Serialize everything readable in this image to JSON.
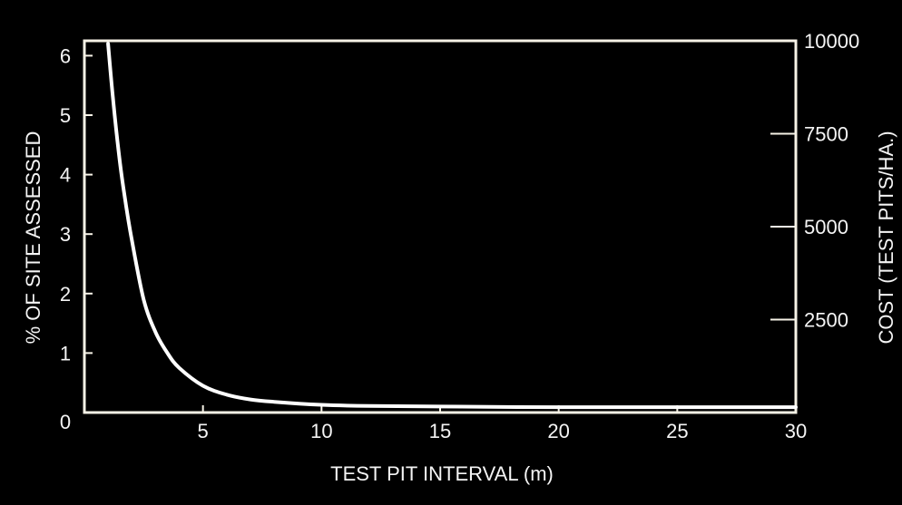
{
  "colors": {
    "background": "#000000",
    "frame": "#f6f2e6",
    "curve": "#ffffff",
    "text": "#f4f4f4"
  },
  "chart_data": {
    "type": "line",
    "title": "",
    "xlabel": "TEST PIT INTERVAL (m)",
    "ylabel": "% OF SITE ASSESSED",
    "y2label": "COST (TEST PITS/HA.)",
    "xlim": [
      0,
      30
    ],
    "ylim": [
      0,
      6.25
    ],
    "y2lim": [
      0,
      10000
    ],
    "x_ticks": [
      5,
      10,
      15,
      20,
      25,
      30
    ],
    "x_tick_labels": [
      "5",
      "10",
      "15",
      "20",
      "25",
      "30"
    ],
    "y_ticks": [
      0,
      1,
      2,
      3,
      4,
      5,
      6
    ],
    "y_tick_labels": [
      "0",
      "1",
      "2",
      "3",
      "4",
      "5",
      "6"
    ],
    "y2_ticks": [
      2500,
      5000,
      7500,
      10000
    ],
    "y2_tick_labels": [
      "2500",
      "5000",
      "7500",
      "10000"
    ],
    "grid": false,
    "legend": "none",
    "series": [
      {
        "axis": "left",
        "x": [
          1,
          1.2,
          1.5,
          1.75,
          2,
          2.5,
          3,
          3.5,
          4,
          5,
          6,
          7,
          8,
          10,
          12,
          15,
          20,
          25,
          30
        ],
        "y": [
          6.2,
          5.3,
          4.2,
          3.5,
          2.9,
          1.9,
          1.35,
          1.0,
          0.75,
          0.45,
          0.3,
          0.22,
          0.18,
          0.13,
          0.11,
          0.1,
          0.09,
          0.09,
          0.09
        ]
      }
    ]
  }
}
